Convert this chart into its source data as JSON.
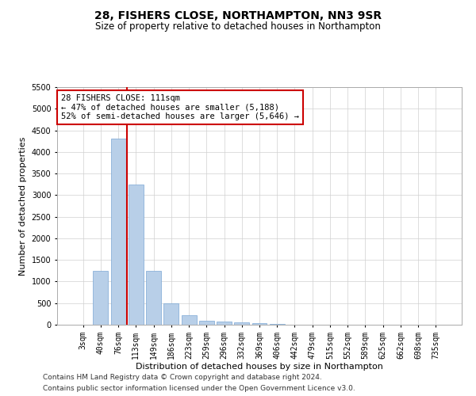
{
  "title": "28, FISHERS CLOSE, NORTHAMPTON, NN3 9SR",
  "subtitle": "Size of property relative to detached houses in Northampton",
  "xlabel": "Distribution of detached houses by size in Northampton",
  "ylabel": "Number of detached properties",
  "categories": [
    "3sqm",
    "40sqm",
    "76sqm",
    "113sqm",
    "149sqm",
    "186sqm",
    "223sqm",
    "259sqm",
    "296sqm",
    "332sqm",
    "369sqm",
    "406sqm",
    "442sqm",
    "479sqm",
    "515sqm",
    "552sqm",
    "589sqm",
    "625sqm",
    "662sqm",
    "698sqm",
    "735sqm"
  ],
  "values": [
    0,
    1250,
    4300,
    3250,
    1250,
    500,
    225,
    100,
    75,
    50,
    30,
    10,
    5,
    3,
    2,
    1,
    0,
    0,
    0,
    0,
    0
  ],
  "bar_color": "#b8cfe8",
  "bar_edge_color": "#7aa6d4",
  "vline_color": "#cc0000",
  "vline_x": 2.5,
  "annotation_text": "28 FISHERS CLOSE: 111sqm\n← 47% of detached houses are smaller (5,188)\n52% of semi-detached houses are larger (5,646) →",
  "annotation_box_color": "#ffffff",
  "annotation_box_edge_color": "#cc0000",
  "ylim": [
    0,
    5500
  ],
  "yticks": [
    0,
    500,
    1000,
    1500,
    2000,
    2500,
    3000,
    3500,
    4000,
    4500,
    5000,
    5500
  ],
  "footer_line1": "Contains HM Land Registry data © Crown copyright and database right 2024.",
  "footer_line2": "Contains public sector information licensed under the Open Government Licence v3.0.",
  "bg_color": "#ffffff",
  "grid_color": "#d0d0d0",
  "title_fontsize": 10,
  "subtitle_fontsize": 8.5,
  "xlabel_fontsize": 8,
  "ylabel_fontsize": 8,
  "tick_fontsize": 7,
  "annotation_fontsize": 7.5,
  "footer_fontsize": 6.5
}
